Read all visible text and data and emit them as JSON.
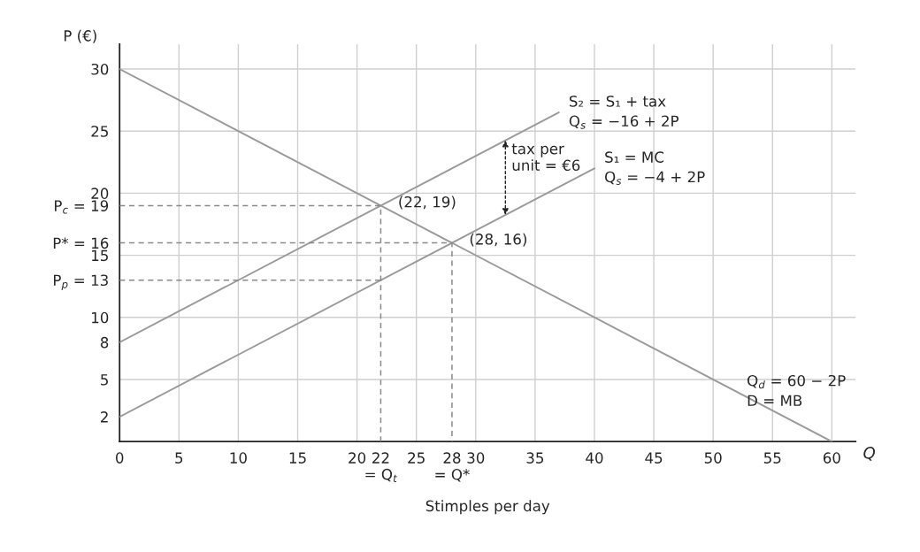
{
  "chart_data": {
    "type": "line",
    "xlabel": "Stimples per day",
    "ylabel": "P (€)",
    "series": [
      {
        "color": "#9a9a9a",
        "x": [
          0,
          60
        ],
        "values": [
          30,
          0
        ]
      },
      {
        "color": "#9a9a9a",
        "x": [
          0,
          40
        ],
        "values": [
          2,
          22
        ]
      },
      {
        "color": "#9a9a9a",
        "x": [
          0,
          37
        ],
        "values": [
          8,
          26.5
        ]
      },
      {
        "color": "#8a8a8a",
        "line_style": "dashed",
        "x": [
          0,
          22,
          22
        ],
        "values": [
          19,
          19,
          0
        ]
      },
      {
        "color": "#8a8a8a",
        "line_style": "dashed",
        "x": [
          0,
          28,
          28
        ],
        "values": [
          16,
          16,
          0
        ]
      },
      {
        "color": "#8a8a8a",
        "line_style": "dashed",
        "x": [
          0,
          22
        ],
        "values": [
          13,
          13
        ]
      }
    ],
    "xlim": [
      0,
      62
    ],
    "ylim": [
      0,
      32
    ],
    "xticks": [
      {
        "value": 0,
        "label": "0"
      },
      5,
      10,
      15,
      20,
      {
        "value": 22,
        "label": "22\n= Q$_{t}$"
      },
      25,
      {
        "value": 28,
        "label": "28\n= Q*"
      },
      30,
      35,
      40,
      45,
      50,
      55,
      60
    ],
    "yticks": [
      2,
      5,
      8,
      10,
      {
        "value": 13,
        "label": "P$_{p}$ = 13"
      },
      15,
      {
        "value": 16,
        "label": "P* = 16"
      },
      {
        "value": 19,
        "label": "P$_{c}$ = 19"
      },
      20,
      25,
      30
    ],
    "grid": true,
    "marker": "none",
    "annotations": [
      {
        "text": "(22, 19)",
        "x": 22,
        "y": 19
      },
      {
        "text": "(28, 16)",
        "x": 28,
        "y": 16
      },
      {
        "text": "S₂ = S₁ + tax\nQ$_{s}$ = −16 + 2P",
        "x": 37,
        "y": 26.5
      },
      {
        "text": "S₁ = MC\nQ$_{s}$ = −4 + 2P",
        "x": 40,
        "y": 22
      },
      {
        "text": "tax per\nunit = €6",
        "x": 32.5,
        "y": 24.25
      },
      {
        "text": "Q$_{d}$ = 60 − 2P\nD = MB",
        "x": 52,
        "y": 4
      },
      "Q"
    ]
  }
}
